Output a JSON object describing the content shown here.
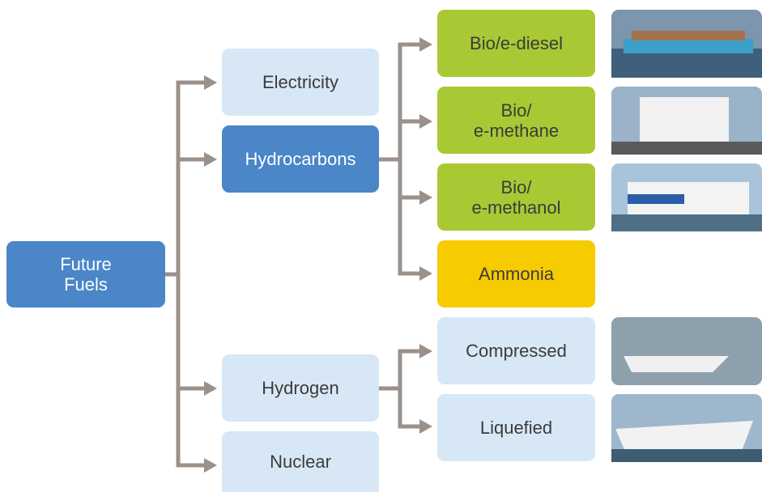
{
  "nodes": [
    {
      "label": "Future\nFuels"
    },
    {
      "label": "Electricity"
    },
    {
      "label": "Hydrocarbons"
    },
    {
      "label": "Hydrogen"
    },
    {
      "label": "Nuclear"
    },
    {
      "label": "Bio/e-diesel"
    },
    {
      "label": "Bio/\ne-methane"
    },
    {
      "label": "Bio/\ne-methanol"
    },
    {
      "label": "Ammonia"
    },
    {
      "label": "Compressed"
    },
    {
      "label": "Liquefied"
    }
  ]
}
